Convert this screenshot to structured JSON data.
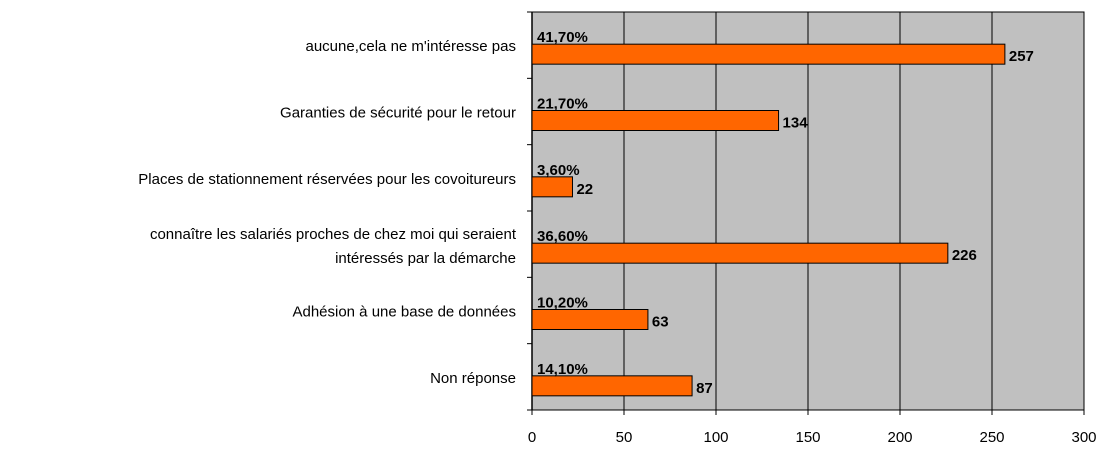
{
  "chart_data": {
    "type": "bar",
    "orientation": "horizontal",
    "categories": [
      "aucune,cela ne m'intéresse pas",
      "Garanties de sécurité pour le retour",
      "Places de stationnement réservées pour les covoitureurs",
      [
        "connaître les salariés proches de chez moi qui seraient",
        "intéressés par la démarche"
      ],
      "Adhésion à une base de données",
      "Non réponse"
    ],
    "values": [
      257,
      134,
      22,
      226,
      63,
      87
    ],
    "percent_labels": [
      "41,70%",
      "21,70%",
      "3,60%",
      "36,60%",
      "10,20%",
      "14,10%"
    ],
    "color": "#ff6600",
    "xlim": [
      0,
      300
    ],
    "xticks": [
      0,
      50,
      100,
      150,
      200,
      250,
      300
    ],
    "grid": true
  }
}
